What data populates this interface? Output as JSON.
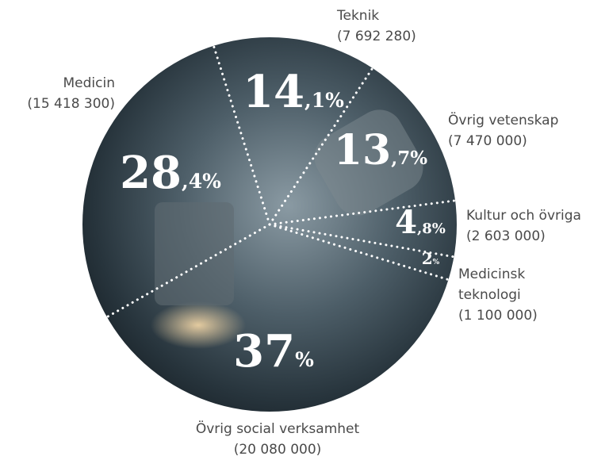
{
  "chart_data": {
    "type": "pie",
    "categories": [
      "Teknik",
      "Övrig vetenskap",
      "Kultur och övriga",
      "Medicinsk teknologi",
      "Övrig social verksamhet",
      "Medicin"
    ],
    "amounts": [
      "(7 692 280)",
      "(7 470 000)",
      "(2 603 000)",
      "(1 100 000)",
      "(20 080 000)",
      "(15 418 300)"
    ],
    "values": [
      14.1,
      13.7,
      4.8,
      2,
      37,
      28.4
    ],
    "value_labels": [
      "14,1%",
      "13,7%",
      "4,8%",
      "2%",
      "37%",
      "28,4%"
    ]
  }
}
